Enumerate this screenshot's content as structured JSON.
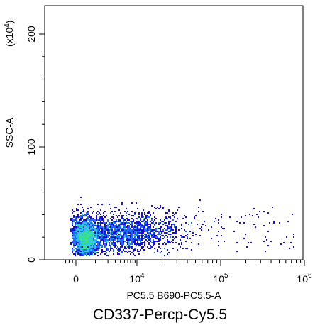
{
  "chart_data": {
    "type": "scatter",
    "title": "CD337-Percp-Cy5.5",
    "xlabel": "PC5.5 B690-PC5.5-A",
    "ylabel": "SSC-A",
    "y_multiplier_label": "(x10",
    "y_multiplier_exp": "4",
    "y_multiplier_close": ")",
    "x_scale": "biexponential",
    "y_scale": "linear",
    "xlim": [
      -1000,
      1000000
    ],
    "ylim": [
      0,
      2200000
    ],
    "x_ticks": [
      {
        "value": 0,
        "label": "0",
        "exp": ""
      },
      {
        "value": 10000,
        "label": "10",
        "exp": "4"
      },
      {
        "value": 100000,
        "label": "10",
        "exp": "5"
      },
      {
        "value": 1000000,
        "label": "10",
        "exp": "6"
      }
    ],
    "y_ticks": [
      {
        "value": 0,
        "label": "0"
      },
      {
        "value": 1000000,
        "label": "100"
      },
      {
        "value": 2000000,
        "label": "200"
      }
    ],
    "colormap": [
      "#1a0fd0",
      "#1e6cf2",
      "#2ec4f0",
      "#3be08a",
      "#9be63a",
      "#e8ee2a"
    ],
    "density_clusters": [
      {
        "x_center": 700,
        "y_center": 160000,
        "x_spread": 400,
        "y_spread": 50000,
        "relative_density": 1.0
      },
      {
        "x_center": 3000,
        "y_center": 190000,
        "x_spread": 2500,
        "y_spread": 70000,
        "relative_density": 0.55
      },
      {
        "x_center": 20000,
        "y_center": 220000,
        "x_spread": 15000,
        "y_spread": 90000,
        "relative_density": 0.15
      }
    ],
    "y_max_of_events": 550000,
    "x_max_of_events": 850000
  }
}
